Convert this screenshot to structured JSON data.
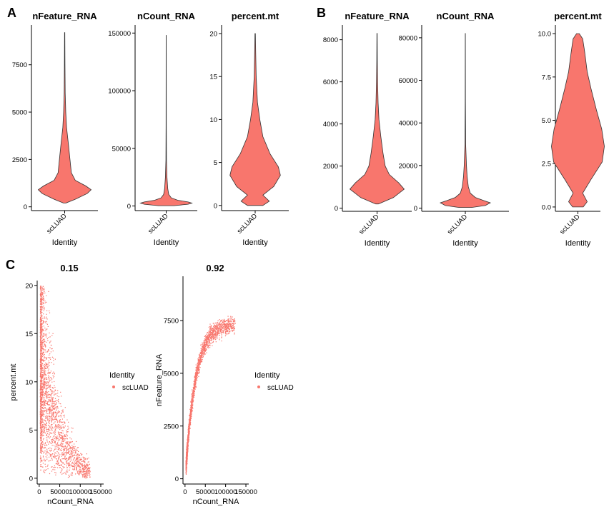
{
  "panel_labels": {
    "A": "A",
    "B": "B",
    "C": "C"
  },
  "chart_data": [
    {
      "panel": "A",
      "type": "violin",
      "title": "nFeature_RNA",
      "xlabel": "Identity",
      "category": "scLUAD",
      "yticks": [
        0,
        2500,
        5000,
        7500
      ],
      "ylim": [
        -200,
        9600
      ],
      "max": 9200,
      "min": 200,
      "color": "#F8766D",
      "profile": [
        [
          200,
          0.05
        ],
        [
          400,
          0.4
        ],
        [
          700,
          0.85
        ],
        [
          900,
          1.0
        ],
        [
          1100,
          0.8
        ],
        [
          1400,
          0.4
        ],
        [
          1800,
          0.25
        ],
        [
          2500,
          0.2
        ],
        [
          3300,
          0.14
        ],
        [
          4200,
          0.07
        ],
        [
          5000,
          0.04
        ],
        [
          6000,
          0.02
        ],
        [
          7500,
          0.01
        ],
        [
          9200,
          0.005
        ]
      ]
    },
    {
      "panel": "A",
      "type": "violin",
      "title": "nCount_RNA",
      "xlabel": "Identity",
      "category": "scLUAD",
      "yticks": [
        0,
        50000,
        100000,
        150000
      ],
      "ylim": [
        -4000,
        157000
      ],
      "max": 148000,
      "min": 300,
      "color": "#F8766D",
      "profile": [
        [
          300,
          0.3
        ],
        [
          1500,
          0.85
        ],
        [
          2500,
          1.0
        ],
        [
          3500,
          0.85
        ],
        [
          5000,
          0.45
        ],
        [
          7000,
          0.2
        ],
        [
          10000,
          0.1
        ],
        [
          15000,
          0.06
        ],
        [
          25000,
          0.03
        ],
        [
          40000,
          0.012
        ],
        [
          70000,
          0.006
        ],
        [
          148000,
          0.004
        ]
      ]
    },
    {
      "panel": "A",
      "type": "violin",
      "title": "percent.mt",
      "xlabel": "Identity",
      "category": "scLUAD",
      "yticks": [
        0,
        5,
        10,
        15,
        20
      ],
      "ylim": [
        -0.6,
        21
      ],
      "max": 20,
      "min": 0,
      "color": "#F8766D",
      "profile": [
        [
          0,
          0.3
        ],
        [
          0.5,
          0.55
        ],
        [
          1.2,
          0.3
        ],
        [
          2.2,
          0.72
        ],
        [
          3.5,
          0.98
        ],
        [
          4.5,
          0.9
        ],
        [
          6,
          0.58
        ],
        [
          8,
          0.3
        ],
        [
          10,
          0.18
        ],
        [
          12,
          0.09
        ],
        [
          15,
          0.04
        ],
        [
          18,
          0.02
        ],
        [
          20,
          0.008
        ]
      ]
    },
    {
      "panel": "B",
      "type": "violin",
      "title": "nFeature_RNA",
      "xlabel": "Identity",
      "category": "scLUAD",
      "yticks": [
        0,
        2000,
        4000,
        6000,
        8000
      ],
      "ylim": [
        -150,
        8700
      ],
      "max": 8300,
      "min": 200,
      "color": "#F8766D",
      "profile": [
        [
          200,
          0.05
        ],
        [
          500,
          0.6
        ],
        [
          900,
          1.0
        ],
        [
          1200,
          0.8
        ],
        [
          1600,
          0.45
        ],
        [
          2000,
          0.3
        ],
        [
          2600,
          0.22
        ],
        [
          3400,
          0.14
        ],
        [
          4200,
          0.07
        ],
        [
          5000,
          0.04
        ],
        [
          6000,
          0.02
        ],
        [
          7000,
          0.01
        ],
        [
          8300,
          0.005
        ]
      ]
    },
    {
      "panel": "B",
      "type": "violin",
      "title": "nCount_RNA",
      "xlabel": "Identity",
      "category": "scLUAD",
      "yticks": [
        0,
        20000,
        40000,
        60000,
        80000
      ],
      "ylim": [
        -1500,
        86000
      ],
      "max": 82000,
      "min": 300,
      "color": "#F8766D",
      "profile": [
        [
          300,
          0.25
        ],
        [
          1200,
          0.8
        ],
        [
          2500,
          1.0
        ],
        [
          3500,
          0.75
        ],
        [
          5000,
          0.4
        ],
        [
          7000,
          0.2
        ],
        [
          10000,
          0.12
        ],
        [
          15000,
          0.07
        ],
        [
          20000,
          0.045
        ],
        [
          30000,
          0.015
        ],
        [
          50000,
          0.006
        ],
        [
          82000,
          0.003
        ]
      ]
    },
    {
      "panel": "B",
      "type": "violin",
      "title": "percent.mt",
      "xlabel": "Identity",
      "category": "scLUAD",
      "yticks": [
        0.0,
        2.5,
        5.0,
        7.5,
        10.0
      ],
      "ylim": [
        -0.25,
        10.5
      ],
      "max": 10,
      "min": 0,
      "color": "#F8766D",
      "profile": [
        [
          0,
          0.2
        ],
        [
          0.3,
          0.35
        ],
        [
          0.8,
          0.18
        ],
        [
          1.6,
          0.5
        ],
        [
          2.6,
          0.92
        ],
        [
          3.5,
          1.0
        ],
        [
          4.5,
          0.9
        ],
        [
          5.6,
          0.7
        ],
        [
          6.8,
          0.5
        ],
        [
          7.8,
          0.35
        ],
        [
          9,
          0.25
        ],
        [
          9.7,
          0.18
        ],
        [
          10,
          0.05
        ]
      ]
    },
    {
      "panel": "C",
      "type": "scatter",
      "title": "0.15",
      "xlabel": "nCount_RNA",
      "ylabel": "percent.mt",
      "xticks": [
        0,
        50000,
        100000,
        150000
      ],
      "yticks": [
        0,
        5,
        10,
        15,
        20
      ],
      "xlim": [
        -5000,
        157000
      ],
      "ylim": [
        -0.6,
        20.5
      ],
      "legend": {
        "title": "Identity",
        "entries": [
          "scLUAD"
        ]
      },
      "color": "#F8766D",
      "correlation": 0.15
    },
    {
      "panel": "C",
      "type": "scatter",
      "title": "0.92",
      "xlabel": "nCount_RNA",
      "ylabel": "nFeature_RNA",
      "xticks": [
        0,
        50000,
        100000,
        150000
      ],
      "yticks": [
        0,
        2500,
        5000,
        7500
      ],
      "xlim": [
        -5000,
        157000
      ],
      "ylim": [
        -250,
        9600
      ],
      "legend": {
        "title": "Identity",
        "entries": [
          "scLUAD"
        ]
      },
      "color": "#F8766D",
      "correlation": 0.92
    }
  ]
}
